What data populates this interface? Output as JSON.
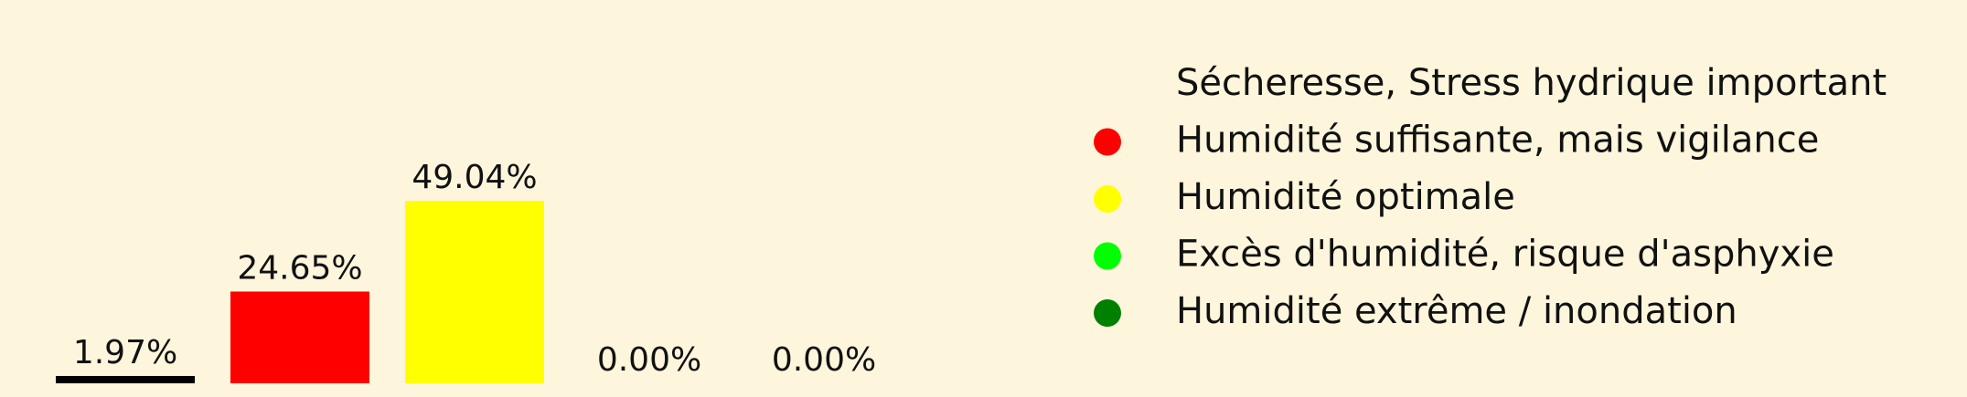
{
  "colors": {
    "background": "#fdf6dc",
    "text": "#111111"
  },
  "chart_data": {
    "type": "bar",
    "categories": [
      "Sécheresse, Stress hydrique important",
      "Humidité suffisante, mais vigilance",
      "Humidité optimale",
      "Excès d'humidité, risque d'asphyxie",
      "Humidité extrême / inondation"
    ],
    "values": [
      1.97,
      24.65,
      49.04,
      0.0,
      0.0
    ],
    "value_labels": [
      "1.97%",
      "24.65%",
      "49.04%",
      "0.00%",
      "0.00%"
    ],
    "colors": [
      "#000000",
      "#ff0000",
      "#ffff00",
      "#00ff00",
      "#008000"
    ],
    "ylim": [
      0,
      50
    ],
    "grid": false,
    "legend": {
      "placement": "right",
      "entries": [
        {
          "label": "Sécheresse, Stress hydrique important",
          "color": "#000000",
          "marker": "none"
        },
        {
          "label": "Humidité suffisante, mais vigilance",
          "color": "#ff0000",
          "marker": "circle"
        },
        {
          "label": "Humidité optimale",
          "color": "#ffff00",
          "marker": "circle"
        },
        {
          "label": "Excès d'humidité, risque d'asphyxie",
          "color": "#00ff00",
          "marker": "circle"
        },
        {
          "label": "Humidité extrême / inondation",
          "color": "#008000",
          "marker": "circle"
        }
      ]
    }
  }
}
